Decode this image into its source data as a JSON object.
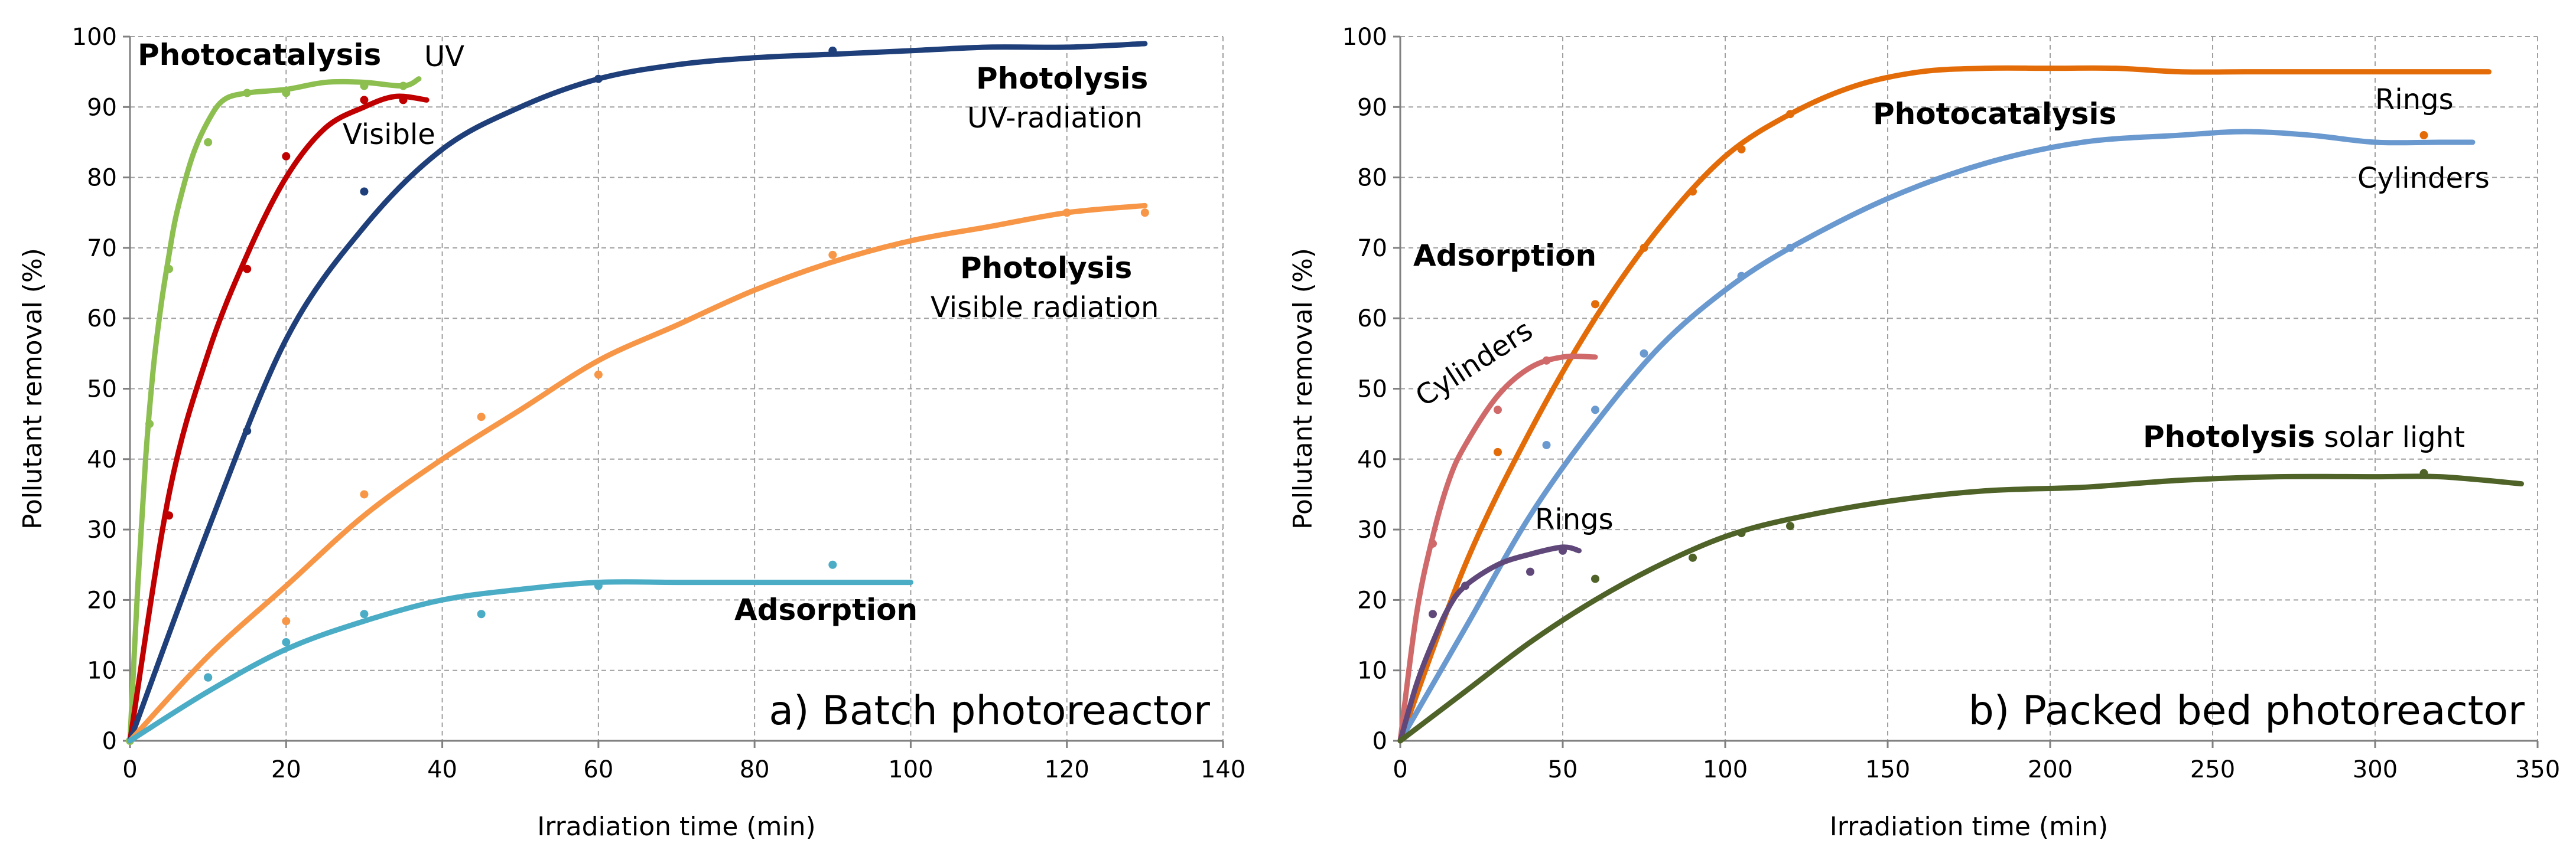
{
  "chart_data": [
    {
      "type": "scatter",
      "panel_label": "a) Batch photoreactor",
      "xlabel": "Irradiation time (min)",
      "ylabel": "Pollutant removal (%)",
      "xlim": [
        0,
        140
      ],
      "ylim": [
        0,
        100
      ],
      "xticks": [
        "0",
        "20",
        "40",
        "60",
        "80",
        "100",
        "120",
        "140"
      ],
      "yticks": [
        "0",
        "10",
        "20",
        "30",
        "40",
        "50",
        "60",
        "70",
        "80",
        "90",
        "100"
      ],
      "grid": true,
      "series": [
        {
          "name": "Photocatalysis UV",
          "color": "#8cbf50",
          "points": [
            [
              0,
              0
            ],
            [
              2.5,
              45
            ],
            [
              5,
              67
            ],
            [
              10,
              85
            ],
            [
              15,
              92
            ],
            [
              20,
              92
            ],
            [
              30,
              93
            ],
            [
              35,
              93
            ]
          ],
          "fit": [
            [
              0,
              0
            ],
            [
              1,
              22
            ],
            [
              2,
              40
            ],
            [
              3,
              53
            ],
            [
              4,
              62
            ],
            [
              5,
              69
            ],
            [
              6,
              75
            ],
            [
              8,
              83
            ],
            [
              10,
              88
            ],
            [
              12,
              91
            ],
            [
              15,
              92
            ],
            [
              20,
              92.5
            ],
            [
              25,
              93.5
            ],
            [
              30,
              93.5
            ],
            [
              35,
              93
            ],
            [
              37,
              94
            ]
          ]
        },
        {
          "name": "Photocatalysis Visible",
          "color": "#c00000",
          "points": [
            [
              5,
              32
            ],
            [
              15,
              67
            ],
            [
              20,
              83
            ],
            [
              30,
              91
            ],
            [
              35,
              91
            ]
          ],
          "fit": [
            [
              0,
              0
            ],
            [
              5,
              35
            ],
            [
              10,
              55
            ],
            [
              15,
              69
            ],
            [
              20,
              80
            ],
            [
              25,
              87
            ],
            [
              30,
              90
            ],
            [
              34,
              91.5
            ],
            [
              38,
              91
            ]
          ]
        },
        {
          "name": "Photolysis UV-radiation",
          "color": "#1f3f7a",
          "points": [
            [
              10,
              9
            ],
            [
              15,
              44
            ],
            [
              30,
              78
            ],
            [
              60,
              94
            ],
            [
              90,
              98
            ]
          ],
          "fit": [
            [
              0,
              0
            ],
            [
              10,
              30
            ],
            [
              20,
              57
            ],
            [
              30,
              73
            ],
            [
              40,
              84
            ],
            [
              50,
              90
            ],
            [
              60,
              94
            ],
            [
              70,
              96
            ],
            [
              80,
              97
            ],
            [
              90,
              97.5
            ],
            [
              100,
              98
            ],
            [
              110,
              98.5
            ],
            [
              120,
              98.5
            ],
            [
              130,
              99
            ]
          ]
        },
        {
          "name": "Photolysis Visible radiation",
          "color": "#f79646",
          "points": [
            [
              20,
              17
            ],
            [
              30,
              35
            ],
            [
              45,
              46
            ],
            [
              60,
              52
            ],
            [
              90,
              69
            ],
            [
              120,
              75
            ],
            [
              130,
              75
            ]
          ],
          "fit": [
            [
              0,
              0
            ],
            [
              10,
              12
            ],
            [
              20,
              22
            ],
            [
              30,
              32
            ],
            [
              40,
              40
            ],
            [
              50,
              47
            ],
            [
              60,
              54
            ],
            [
              70,
              59
            ],
            [
              80,
              64
            ],
            [
              90,
              68
            ],
            [
              100,
              71
            ],
            [
              110,
              73
            ],
            [
              120,
              75
            ],
            [
              130,
              76
            ]
          ]
        },
        {
          "name": "Adsorption",
          "color": "#4bacc6",
          "points": [
            [
              10,
              9
            ],
            [
              20,
              14
            ],
            [
              30,
              18
            ],
            [
              45,
              18
            ],
            [
              60,
              22
            ],
            [
              90,
              25
            ]
          ],
          "fit": [
            [
              0,
              0
            ],
            [
              10,
              7
            ],
            [
              20,
              13
            ],
            [
              30,
              17
            ],
            [
              40,
              20
            ],
            [
              50,
              21.5
            ],
            [
              60,
              22.5
            ],
            [
              70,
              22.5
            ],
            [
              80,
              22.5
            ],
            [
              90,
              22.5
            ],
            [
              100,
              22.5
            ]
          ]
        }
      ]
    },
    {
      "type": "scatter",
      "panel_label": "b) Packed bed photoreactor",
      "xlabel": "Irradiation time (min)",
      "ylabel": "Pollutant removal (%)",
      "xlim": [
        0,
        350
      ],
      "ylim": [
        0,
        100
      ],
      "xticks": [
        "0",
        "50",
        "100",
        "150",
        "200",
        "250",
        "300",
        "350"
      ],
      "yticks": [
        "0",
        "10",
        "20",
        "30",
        "40",
        "50",
        "60",
        "70",
        "80",
        "90",
        "100"
      ],
      "grid": true,
      "series": [
        {
          "name": "Photocatalysis Rings",
          "color": "#e36c09",
          "points": [
            [
              30,
              41
            ],
            [
              60,
              62
            ],
            [
              75,
              70
            ],
            [
              90,
              78
            ],
            [
              105,
              84
            ],
            [
              120,
              89
            ],
            [
              315,
              86
            ]
          ],
          "fit": [
            [
              0,
              0
            ],
            [
              20,
              25
            ],
            [
              40,
              44
            ],
            [
              60,
              60
            ],
            [
              80,
              73
            ],
            [
              100,
              83
            ],
            [
              120,
              89
            ],
            [
              140,
              93
            ],
            [
              160,
              95
            ],
            [
              180,
              95.5
            ],
            [
              200,
              95.5
            ],
            [
              220,
              95.5
            ],
            [
              240,
              95
            ],
            [
              260,
              95
            ],
            [
              280,
              95
            ],
            [
              300,
              95
            ],
            [
              320,
              95
            ],
            [
              335,
              95
            ]
          ]
        },
        {
          "name": "Photocatalysis Cylinders",
          "color": "#6a99d0",
          "points": [
            [
              45,
              42
            ],
            [
              60,
              47
            ],
            [
              75,
              55
            ],
            [
              105,
              66
            ],
            [
              120,
              70
            ]
          ],
          "fit": [
            [
              0,
              0
            ],
            [
              20,
              16
            ],
            [
              40,
              32
            ],
            [
              60,
              45
            ],
            [
              80,
              56
            ],
            [
              100,
              64
            ],
            [
              120,
              70
            ],
            [
              150,
              77
            ],
            [
              180,
              82
            ],
            [
              210,
              85
            ],
            [
              240,
              86
            ],
            [
              260,
              86.5
            ],
            [
              280,
              86
            ],
            [
              300,
              85
            ],
            [
              320,
              85
            ],
            [
              330,
              85
            ]
          ]
        },
        {
          "name": "Adsorption Cylinders",
          "color": "#d06a6a",
          "points": [
            [
              10,
              28
            ],
            [
              30,
              47
            ],
            [
              45,
              54
            ]
          ],
          "fit": [
            [
              0,
              0
            ],
            [
              5,
              18
            ],
            [
              10,
              29
            ],
            [
              15,
              37
            ],
            [
              20,
              42
            ],
            [
              30,
              49
            ],
            [
              40,
              53
            ],
            [
              50,
              54.5
            ],
            [
              60,
              54.5
            ]
          ]
        },
        {
          "name": "Adsorption Rings",
          "color": "#60497a",
          "points": [
            [
              10,
              18
            ],
            [
              20,
              22
            ],
            [
              40,
              24
            ],
            [
              50,
              27
            ]
          ],
          "fit": [
            [
              0,
              0
            ],
            [
              5,
              8
            ],
            [
              10,
              14
            ],
            [
              15,
              19
            ],
            [
              20,
              22
            ],
            [
              30,
              25
            ],
            [
              40,
              26.5
            ],
            [
              50,
              27.5
            ],
            [
              55,
              27
            ]
          ]
        },
        {
          "name": "Photolysis solar light",
          "color": "#4f6228",
          "points": [
            [
              60,
              23
            ],
            [
              90,
              26
            ],
            [
              105,
              29.5
            ],
            [
              120,
              30.5
            ],
            [
              315,
              38
            ]
          ],
          "fit": [
            [
              0,
              0
            ],
            [
              20,
              7
            ],
            [
              40,
              14
            ],
            [
              60,
              20
            ],
            [
              80,
              25
            ],
            [
              100,
              29
            ],
            [
              120,
              31.5
            ],
            [
              150,
              34
            ],
            [
              180,
              35.5
            ],
            [
              210,
              36
            ],
            [
              240,
              37
            ],
            [
              270,
              37.5
            ],
            [
              300,
              37.5
            ],
            [
              320,
              37.5
            ],
            [
              345,
              36.5
            ]
          ]
        }
      ]
    }
  ],
  "annotations_a": {
    "photocatalysis": "Photocatalysis",
    "uv": "UV",
    "visible": "Visible",
    "photolysis1": "Photolysis",
    "uv_radiation": "UV-radiation",
    "photolysis2": "Photolysis",
    "visible_radiation": "Visible radiation",
    "adsorption": "Adsorption"
  },
  "annotations_b": {
    "rings_top": "Rings",
    "photocatalysis": "Photocatalysis",
    "cylinders_right": "Cylinders",
    "adsorption": "Adsorption",
    "cylinders_left": "Cylinders",
    "photolysis": "Photolysis",
    "solar_light": " solar light",
    "rings_bottom": "Rings"
  }
}
